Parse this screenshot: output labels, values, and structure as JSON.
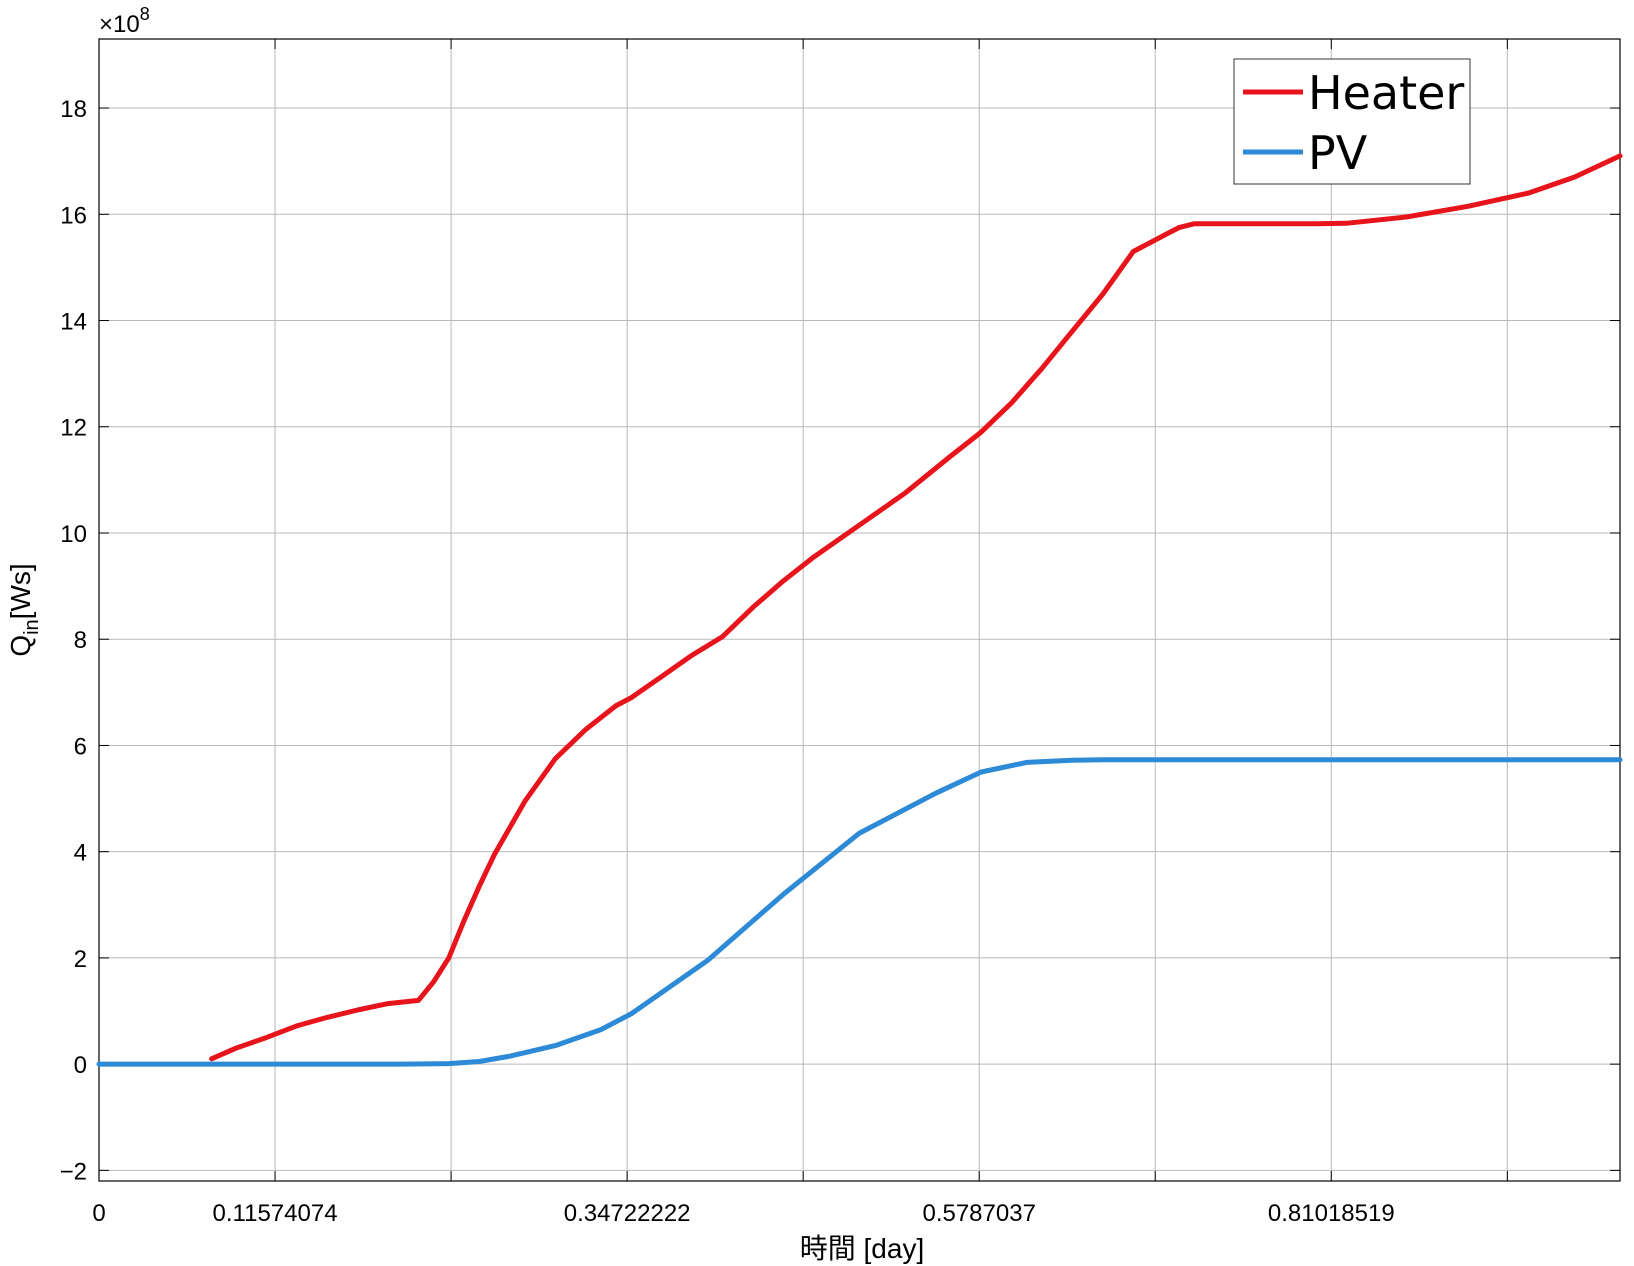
{
  "chart_data": {
    "type": "line",
    "xlabel": "時間 [day]",
    "ylabel_main": "Q",
    "ylabel_sub": "in",
    "ylabel_unit": "[Ws]",
    "y_exponent": {
      "prefix": "×10",
      "power": "8"
    },
    "xlim": [
      0,
      1.0
    ],
    "ylim": [
      -2.2,
      19.3
    ],
    "x_grid": [
      0.115740741,
      0.231481481,
      0.347222222,
      0.462962963,
      0.578703704,
      0.694444444,
      0.810185185,
      0.925925926
    ],
    "x_tick_labels": [
      {
        "x": 0,
        "label": "0"
      },
      {
        "x": 0.115740741,
        "label": "0.11574074"
      },
      {
        "x": 0.347222222,
        "label": "0.34722222"
      },
      {
        "x": 0.578703704,
        "label": "0.5787037"
      },
      {
        "x": 0.810185185,
        "label": "0.81018519"
      }
    ],
    "y_ticks": [
      -2,
      0,
      2,
      4,
      6,
      8,
      10,
      12,
      14,
      16,
      18
    ],
    "grid": true,
    "legend": {
      "placement": "top-right"
    },
    "series": [
      {
        "name": "Heater",
        "color": "#e8141b",
        "x": [
          0.074,
          0.09,
          0.11,
          0.13,
          0.15,
          0.17,
          0.19,
          0.21,
          0.22,
          0.23,
          0.24,
          0.25,
          0.26,
          0.28,
          0.3,
          0.32,
          0.34,
          0.35,
          0.37,
          0.39,
          0.41,
          0.43,
          0.45,
          0.47,
          0.5,
          0.53,
          0.56,
          0.58,
          0.6,
          0.62,
          0.64,
          0.66,
          0.68,
          0.7,
          0.71,
          0.72,
          0.73,
          0.74,
          0.75,
          0.76,
          0.78,
          0.8,
          0.82,
          0.86,
          0.9,
          0.94,
          0.97,
          1.0
        ],
        "y": [
          0.1,
          0.3,
          0.5,
          0.72,
          0.88,
          1.02,
          1.14,
          1.2,
          1.55,
          2.0,
          2.7,
          3.35,
          3.95,
          4.95,
          5.75,
          6.3,
          6.75,
          6.9,
          7.3,
          7.7,
          8.05,
          8.6,
          9.1,
          9.55,
          10.15,
          10.75,
          11.45,
          11.9,
          12.45,
          13.1,
          13.8,
          14.5,
          15.3,
          15.6,
          15.75,
          15.82,
          15.82,
          15.82,
          15.82,
          15.82,
          15.82,
          15.82,
          15.83,
          15.95,
          16.15,
          16.4,
          16.7,
          17.1
        ]
      },
      {
        "name": "PV",
        "color": "#2d8ad6",
        "x": [
          0.0,
          0.1,
          0.2,
          0.23,
          0.25,
          0.27,
          0.3,
          0.33,
          0.35,
          0.4,
          0.45,
          0.5,
          0.55,
          0.58,
          0.61,
          0.64,
          0.66,
          0.7,
          0.8,
          0.9,
          1.0
        ],
        "y": [
          0.0,
          0.0,
          0.0,
          0.01,
          0.05,
          0.15,
          0.35,
          0.65,
          0.95,
          1.95,
          3.2,
          4.35,
          5.1,
          5.5,
          5.68,
          5.72,
          5.73,
          5.73,
          5.73,
          5.73,
          5.73
        ]
      }
    ]
  }
}
